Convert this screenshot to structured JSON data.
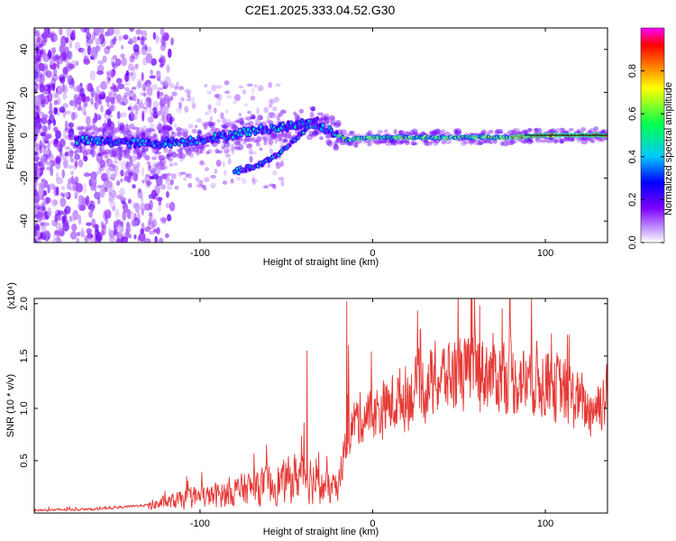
{
  "title": "C2E1.2025.333.04.52.G30",
  "chart_data": [
    {
      "type": "heatmap",
      "title": "C2E1.2025.333.04.52.G30",
      "xlabel": "Height of straight line (km)",
      "ylabel": "Frequency (Hz)",
      "xlim": [
        -196,
        136
      ],
      "ylim": [
        -50,
        50
      ],
      "xticks": [
        -100,
        0,
        100
      ],
      "yticks": [
        -40,
        -20,
        0,
        20,
        40
      ],
      "colorbar": {
        "label": "Normalized spectral amplitude",
        "range": [
          0.0,
          1.0
        ],
        "ticks": [
          0.0,
          0.2,
          0.4,
          0.6,
          0.8
        ],
        "tick_labels": [
          "0.0",
          "0.2",
          "0.4",
          "0.6",
          "0.8"
        ]
      },
      "ridge": [
        {
          "x": -170,
          "y": -2.5
        },
        {
          "x": -150,
          "y": -3
        },
        {
          "x": -130,
          "y": -4
        },
        {
          "x": -110,
          "y": -3
        },
        {
          "x": -90,
          "y": -1
        },
        {
          "x": -70,
          "y": 2
        },
        {
          "x": -50,
          "y": 4
        },
        {
          "x": -35,
          "y": 6
        },
        {
          "x": -25,
          "y": 2
        },
        {
          "x": -15,
          "y": -2
        },
        {
          "x": 0,
          "y": -1
        },
        {
          "x": 20,
          "y": -1
        },
        {
          "x": 50,
          "y": -1
        },
        {
          "x": 80,
          "y": -1
        },
        {
          "x": 100,
          "y": 0
        },
        {
          "x": 136,
          "y": 0
        }
      ],
      "branch": [
        {
          "x": -80,
          "y": -17
        },
        {
          "x": -65,
          "y": -14
        },
        {
          "x": -50,
          "y": -6
        },
        {
          "x": -40,
          "y": 2
        },
        {
          "x": -32,
          "y": 8
        }
      ]
    },
    {
      "type": "line",
      "xlabel": "Height of straight line (km)",
      "ylabel": "SNR (10 * v/v)",
      "yscale_label": "(x10⁴)",
      "xlim": [
        -196,
        136
      ],
      "ylim": [
        0,
        2.05
      ],
      "xticks": [
        -100,
        0,
        100
      ],
      "yticks": [
        0.5,
        1.0,
        1.5,
        2.0
      ],
      "ytick_labels": [
        "0.5",
        "1.0",
        "1.5",
        "2.0"
      ],
      "series": [
        {
          "name": "SNR",
          "color": "#e53935",
          "envelope": [
            {
              "x": -196,
              "y": 0.03
            },
            {
              "x": -160,
              "y": 0.04
            },
            {
              "x": -130,
              "y": 0.08
            },
            {
              "x": -110,
              "y": 0.15
            },
            {
              "x": -90,
              "y": 0.2
            },
            {
              "x": -70,
              "y": 0.28
            },
            {
              "x": -50,
              "y": 0.35
            },
            {
              "x": -40,
              "y": 0.45
            },
            {
              "x": -30,
              "y": 0.3
            },
            {
              "x": -20,
              "y": 0.25
            },
            {
              "x": -15,
              "y": 0.75
            },
            {
              "x": -10,
              "y": 0.95
            },
            {
              "x": 0,
              "y": 1.0
            },
            {
              "x": 20,
              "y": 1.2
            },
            {
              "x": 40,
              "y": 1.38
            },
            {
              "x": 60,
              "y": 1.45
            },
            {
              "x": 80,
              "y": 1.38
            },
            {
              "x": 100,
              "y": 1.35
            },
            {
              "x": 115,
              "y": 1.2
            },
            {
              "x": 125,
              "y": 1.05
            },
            {
              "x": 136,
              "y": 1.2
            }
          ],
          "peaks": [
            {
              "x": -38,
              "y": 1.55
            },
            {
              "x": -15,
              "y": 2.02
            },
            {
              "x": -14,
              "y": 1.6
            },
            {
              "x": 26,
              "y": 1.93
            },
            {
              "x": 57,
              "y": 2.05
            },
            {
              "x": 62,
              "y": 1.98
            },
            {
              "x": 75,
              "y": 1.95
            }
          ]
        }
      ]
    }
  ],
  "colors": {
    "line": "#e53935",
    "colormap": [
      "#ffffff",
      "#7d00ff",
      "#0000ff",
      "#00c8ff",
      "#00ff50",
      "#ffff00",
      "#ff7f00",
      "#ff0000",
      "#ff00ff"
    ]
  }
}
